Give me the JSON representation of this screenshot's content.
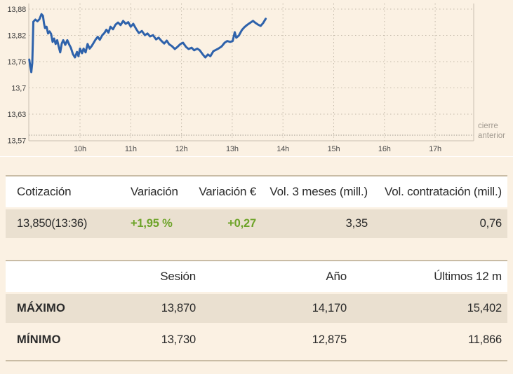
{
  "colors": {
    "page_bg": "#fbf1e3",
    "row_beige": "#eae0d0",
    "border_tan": "#c9bca5",
    "accent_green": "#6da328",
    "line_blue": "#2e62ab",
    "grid": "#c3b9a9",
    "axis": "#c9c0b2",
    "muted": "#a29b91",
    "text_dark": "#2a2a2a"
  },
  "chart_data": {
    "type": "line",
    "x_labels": [
      "10h",
      "11h",
      "12h",
      "13h",
      "14h",
      "15h",
      "16h",
      "17h"
    ],
    "hours": [
      10,
      11,
      12,
      13,
      14,
      15,
      16,
      17
    ],
    "y_ticks": [
      {
        "label": "13,88",
        "value": 13.88
      },
      {
        "label": "13,82",
        "value": 13.8175
      },
      {
        "label": "13,76",
        "value": 13.755
      },
      {
        "label": "13,7",
        "value": 13.6925
      },
      {
        "label": "13,63",
        "value": 13.63
      },
      {
        "label": "13,57",
        "value": 13.5675
      }
    ],
    "ylim": [
      13.5675,
      13.88
    ],
    "xlim_hours": [
      9,
      17.75
    ],
    "grid": true,
    "previous_close": {
      "label": "cierre anterior",
      "value": 13.58
    },
    "series": [
      {
        "name": "precio-intradia",
        "color": "#2e62ab",
        "points": [
          [
            9.0,
            13.76
          ],
          [
            9.02,
            13.744
          ],
          [
            9.04,
            13.73
          ],
          [
            9.06,
            13.752
          ],
          [
            9.07,
            13.802
          ],
          [
            9.08,
            13.85
          ],
          [
            9.12,
            13.855
          ],
          [
            9.16,
            13.851
          ],
          [
            9.2,
            13.856
          ],
          [
            9.24,
            13.868
          ],
          [
            9.27,
            13.864
          ],
          [
            9.29,
            13.846
          ],
          [
            9.31,
            13.835
          ],
          [
            9.34,
            13.838
          ],
          [
            9.37,
            13.822
          ],
          [
            9.4,
            13.827
          ],
          [
            9.43,
            13.821
          ],
          [
            9.46,
            13.802
          ],
          [
            9.49,
            13.81
          ],
          [
            9.52,
            13.797
          ],
          [
            9.55,
            13.806
          ],
          [
            9.58,
            13.791
          ],
          [
            9.61,
            13.777
          ],
          [
            9.64,
            13.798
          ],
          [
            9.67,
            13.806
          ],
          [
            9.71,
            13.795
          ],
          [
            9.75,
            13.806
          ],
          [
            9.79,
            13.795
          ],
          [
            9.82,
            13.788
          ],
          [
            9.86,
            13.773
          ],
          [
            9.9,
            13.765
          ],
          [
            9.94,
            13.778
          ],
          [
            9.97,
            13.768
          ],
          [
            10.0,
            13.786
          ],
          [
            10.04,
            13.775
          ],
          [
            10.07,
            13.786
          ],
          [
            10.11,
            13.777
          ],
          [
            10.15,
            13.797
          ],
          [
            10.19,
            13.786
          ],
          [
            10.23,
            13.792
          ],
          [
            10.27,
            13.8
          ],
          [
            10.31,
            13.808
          ],
          [
            10.35,
            13.814
          ],
          [
            10.39,
            13.807
          ],
          [
            10.44,
            13.818
          ],
          [
            10.48,
            13.823
          ],
          [
            10.52,
            13.831
          ],
          [
            10.56,
            13.824
          ],
          [
            10.6,
            13.838
          ],
          [
            10.65,
            13.832
          ],
          [
            10.7,
            13.843
          ],
          [
            10.75,
            13.848
          ],
          [
            10.8,
            13.842
          ],
          [
            10.85,
            13.852
          ],
          [
            10.9,
            13.845
          ],
          [
            10.95,
            13.849
          ],
          [
            11.0,
            13.838
          ],
          [
            11.05,
            13.845
          ],
          [
            11.11,
            13.832
          ],
          [
            11.16,
            13.823
          ],
          [
            11.22,
            13.828
          ],
          [
            11.28,
            13.818
          ],
          [
            11.33,
            13.822
          ],
          [
            11.38,
            13.815
          ],
          [
            11.44,
            13.818
          ],
          [
            11.5,
            13.808
          ],
          [
            11.55,
            13.812
          ],
          [
            11.6,
            13.805
          ],
          [
            11.66,
            13.798
          ],
          [
            11.71,
            13.805
          ],
          [
            11.76,
            13.796
          ],
          [
            11.81,
            13.792
          ],
          [
            11.87,
            13.785
          ],
          [
            11.92,
            13.79
          ],
          [
            11.98,
            13.797
          ],
          [
            12.03,
            13.8
          ],
          [
            12.09,
            13.79
          ],
          [
            12.14,
            13.785
          ],
          [
            12.2,
            13.788
          ],
          [
            12.25,
            13.782
          ],
          [
            12.31,
            13.786
          ],
          [
            12.36,
            13.782
          ],
          [
            12.42,
            13.772
          ],
          [
            12.47,
            13.765
          ],
          [
            12.52,
            13.772
          ],
          [
            12.57,
            13.768
          ],
          [
            12.63,
            13.78
          ],
          [
            12.68,
            13.783
          ],
          [
            12.74,
            13.787
          ],
          [
            12.79,
            13.791
          ],
          [
            12.85,
            13.8
          ],
          [
            12.9,
            13.804
          ],
          [
            12.96,
            13.802
          ],
          [
            13.01,
            13.804
          ],
          [
            13.05,
            13.825
          ],
          [
            13.08,
            13.812
          ],
          [
            13.13,
            13.817
          ],
          [
            13.19,
            13.83
          ],
          [
            13.24,
            13.837
          ],
          [
            13.3,
            13.843
          ],
          [
            13.35,
            13.847
          ],
          [
            13.41,
            13.852
          ],
          [
            13.46,
            13.847
          ],
          [
            13.51,
            13.843
          ],
          [
            13.56,
            13.84
          ],
          [
            13.61,
            13.847
          ],
          [
            13.66,
            13.857
          ]
        ]
      }
    ]
  },
  "quote_table": {
    "headers": [
      "Cotización",
      "Variación %",
      "Variación €",
      "Vol. 3 meses (mill.)",
      "Vol. contratación (mill.)"
    ],
    "row": {
      "cotizacion": "13,850(13:36)",
      "variacion_pct": "+1,95 %",
      "variacion_eur": "+0,27",
      "vol_3_meses": "3,35",
      "vol_contratacion": "0,76"
    }
  },
  "range_table": {
    "headers": [
      "",
      "Sesión",
      "Año",
      "Últimos 12 m"
    ],
    "rows": [
      {
        "label": "MÁXIMO",
        "sesion": "13,870",
        "ano": "14,170",
        "ultimos_12m": "15,402"
      },
      {
        "label": "MÍNIMO",
        "sesion": "13,730",
        "ano": "12,875",
        "ultimos_12m": "11,866"
      }
    ]
  }
}
